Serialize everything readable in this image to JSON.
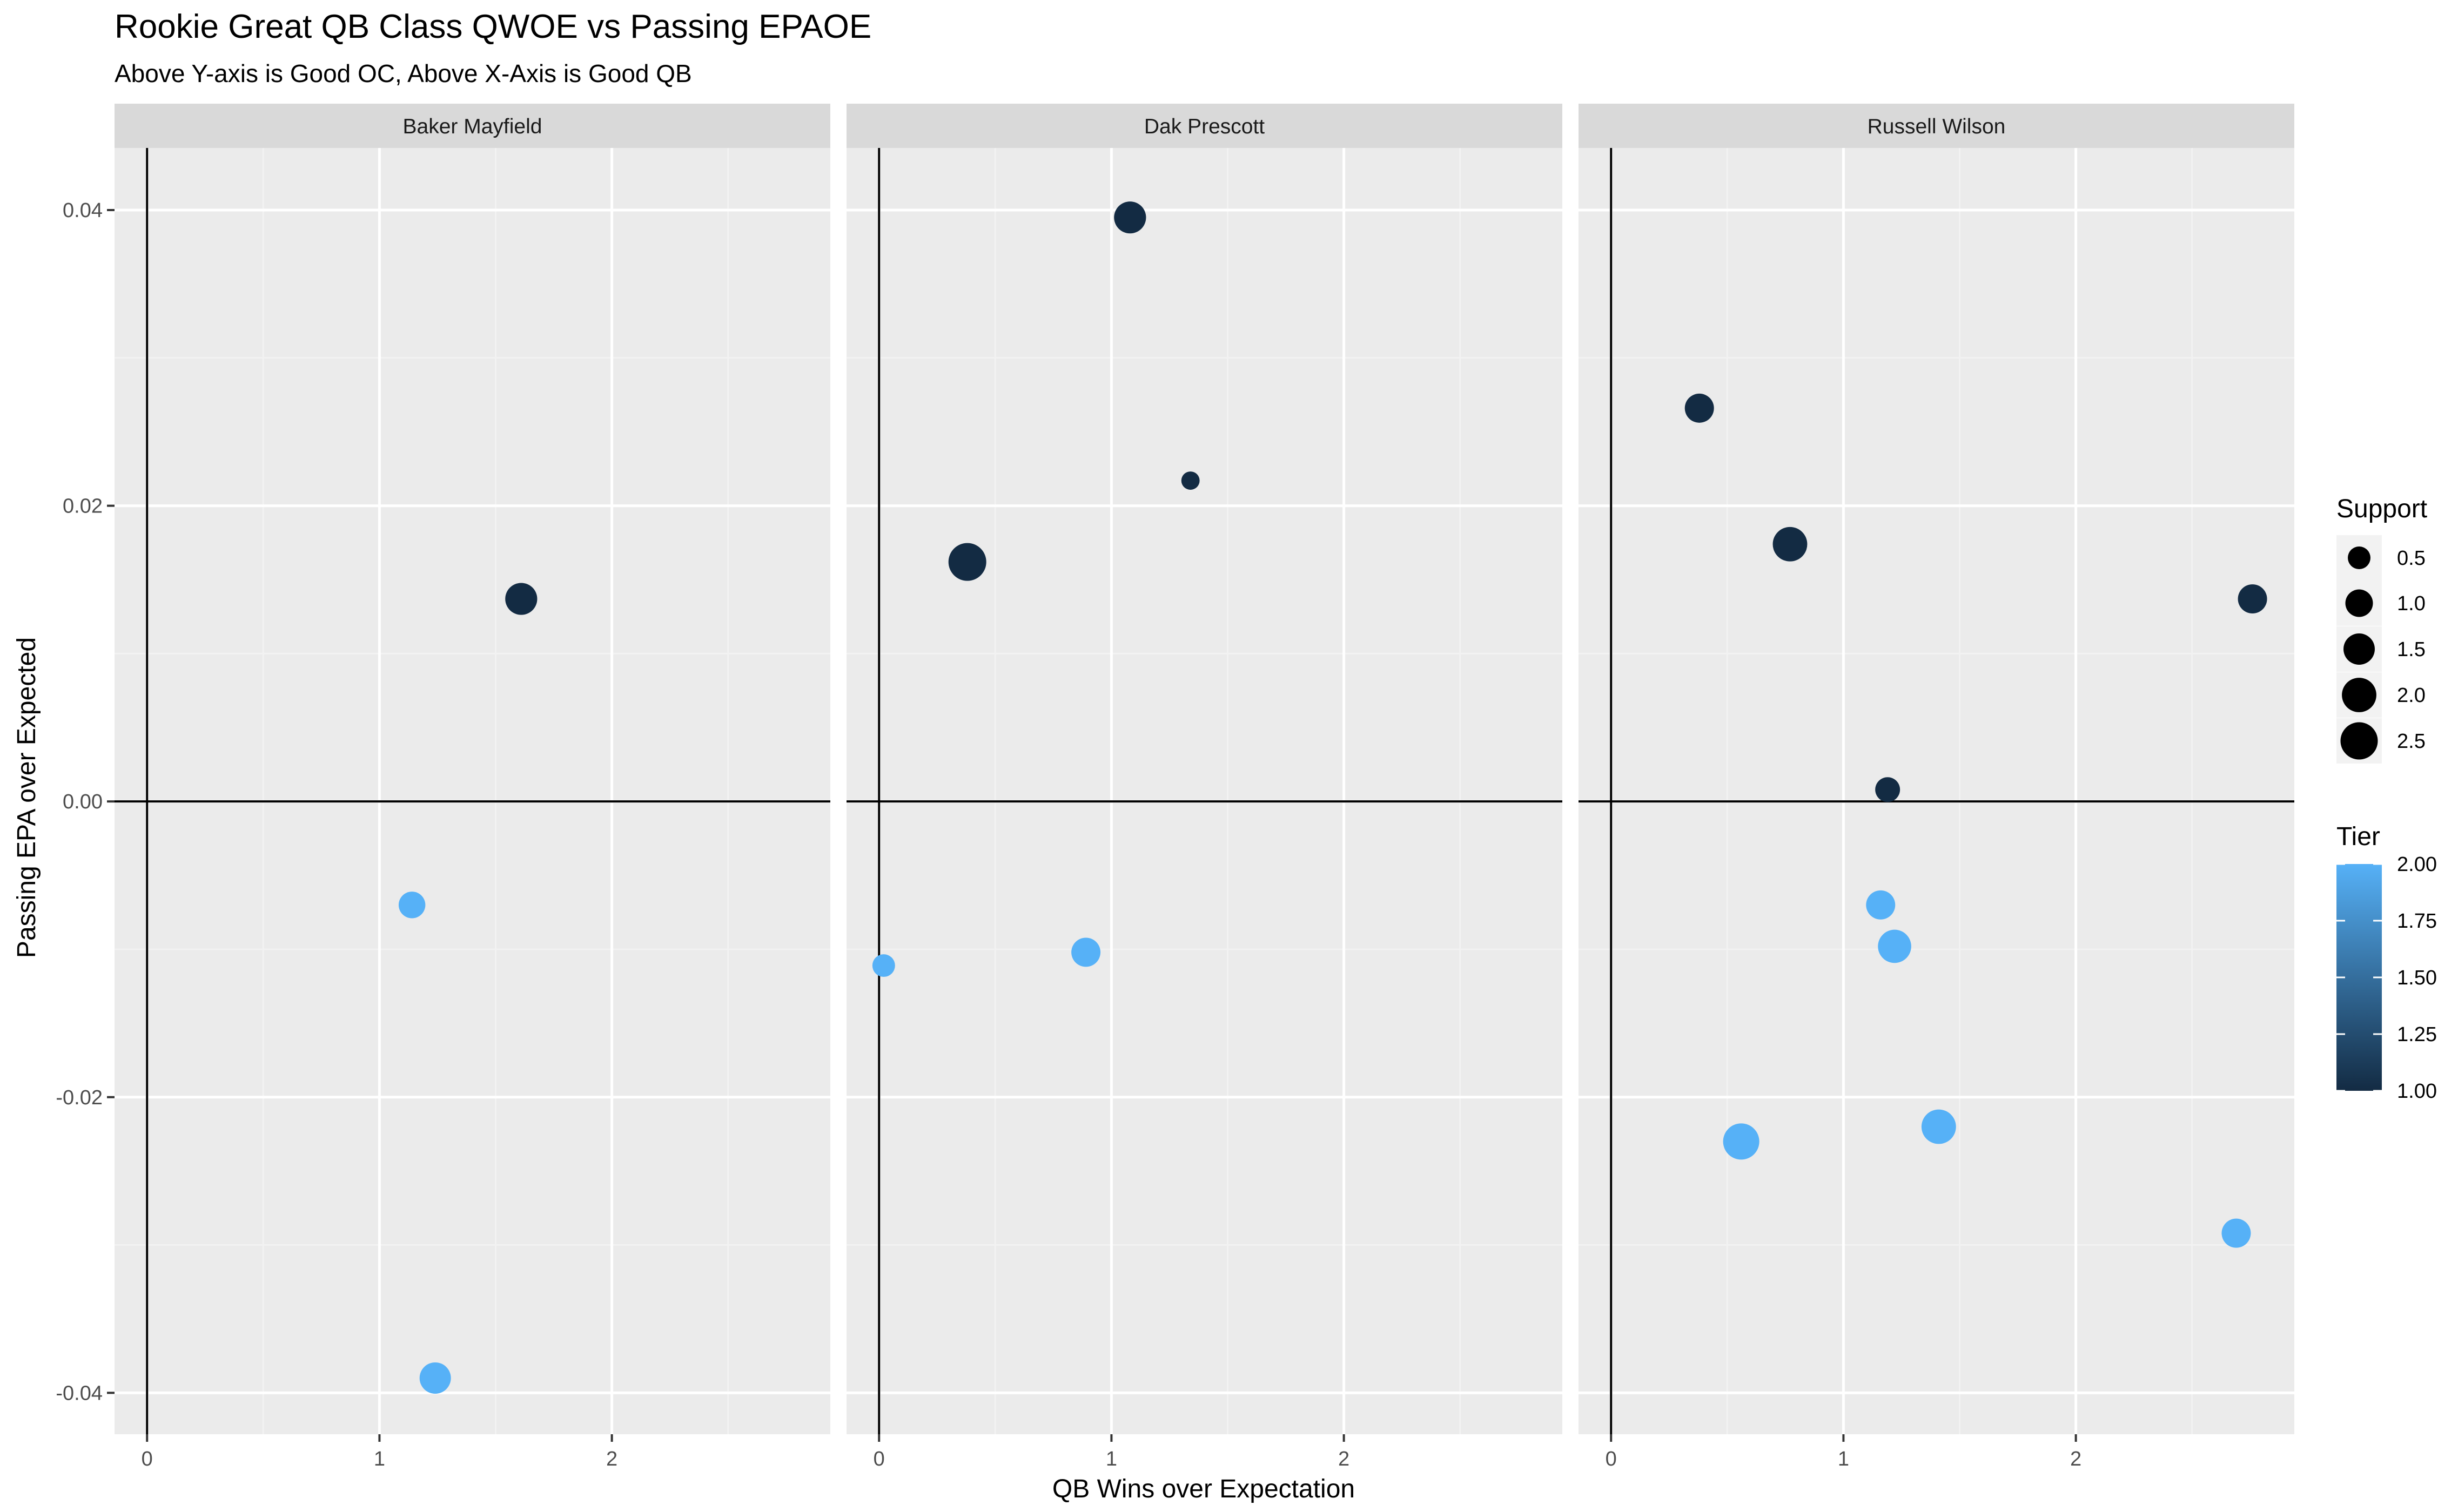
{
  "chart_data": {
    "type": "scatter",
    "title": "Rookie Great QB Class QWOE vs Passing EPAOE",
    "subtitle": "Above Y-axis is Good OC, Above X-Axis is Good QB",
    "xlabel": "QB Wins over Expectation",
    "ylabel": "Passing EPA over Expected",
    "xlim": [
      -0.14,
      2.94
    ],
    "ylim": [
      -0.0428,
      0.0442
    ],
    "x_ticks": [
      0,
      1,
      2
    ],
    "x_tick_labels": [
      "0",
      "1",
      "2"
    ],
    "y_ticks": [
      -0.04,
      -0.02,
      0.0,
      0.02,
      0.04
    ],
    "y_tick_labels": [
      "-0.04",
      "-0.02",
      "0.00",
      "0.02",
      "0.04"
    ],
    "reference_lines": {
      "x": 0,
      "y": 0
    },
    "grid": true,
    "panels": [
      {
        "name": "Baker Mayfield",
        "points": [
          {
            "x": 1.61,
            "y": 0.0137,
            "support": 1.6,
            "tier": 1
          },
          {
            "x": 1.14,
            "y": -0.007,
            "support": 0.9,
            "tier": 2
          },
          {
            "x": 1.24,
            "y": -0.039,
            "support": 1.5,
            "tier": 2
          }
        ]
      },
      {
        "name": "Dak Prescott",
        "points": [
          {
            "x": 1.08,
            "y": 0.0395,
            "support": 1.6,
            "tier": 1
          },
          {
            "x": 1.34,
            "y": 0.0217,
            "support": 0.2,
            "tier": 1
          },
          {
            "x": 0.38,
            "y": 0.0162,
            "support": 2.6,
            "tier": 1
          },
          {
            "x": 0.02,
            "y": -0.0111,
            "support": 0.5,
            "tier": 2
          },
          {
            "x": 0.89,
            "y": -0.0102,
            "support": 1.2,
            "tier": 2
          }
        ]
      },
      {
        "name": "Russell Wilson",
        "points": [
          {
            "x": 0.38,
            "y": 0.0266,
            "support": 1.2,
            "tier": 1
          },
          {
            "x": 0.77,
            "y": 0.0174,
            "support": 2.0,
            "tier": 1
          },
          {
            "x": 2.76,
            "y": 0.0137,
            "support": 1.2,
            "tier": 1
          },
          {
            "x": 1.19,
            "y": 0.0008,
            "support": 0.7,
            "tier": 1
          },
          {
            "x": 1.16,
            "y": -0.007,
            "support": 1.2,
            "tier": 2
          },
          {
            "x": 1.22,
            "y": -0.0098,
            "support": 1.8,
            "tier": 2
          },
          {
            "x": 0.56,
            "y": -0.023,
            "support": 2.3,
            "tier": 2
          },
          {
            "x": 1.41,
            "y": -0.022,
            "support": 2.0,
            "tier": 2
          },
          {
            "x": 2.69,
            "y": -0.0292,
            "support": 1.2,
            "tier": 2
          }
        ]
      }
    ],
    "legend": {
      "placement": "right",
      "size": {
        "title": "Support",
        "values": [
          0.5,
          1.0,
          1.5,
          2.0,
          2.5
        ],
        "labels": [
          "0.5",
          "1.0",
          "1.5",
          "2.0",
          "2.5"
        ]
      },
      "color": {
        "title": "Tier",
        "values": [
          1.0,
          1.25,
          1.5,
          1.75,
          2.0
        ],
        "labels": [
          "1.00",
          "1.25",
          "1.50",
          "1.75",
          "2.00"
        ],
        "low_color": "#132B43",
        "high_color": "#56B1F7"
      }
    },
    "colors": {
      "panel_background": "#EBEBEB",
      "strip_background": "#D9D9D9",
      "grid_major": "#FFFFFF",
      "grid_minor": "#F2F2F2",
      "reference_line": "#000000",
      "tick": "#333333"
    }
  }
}
